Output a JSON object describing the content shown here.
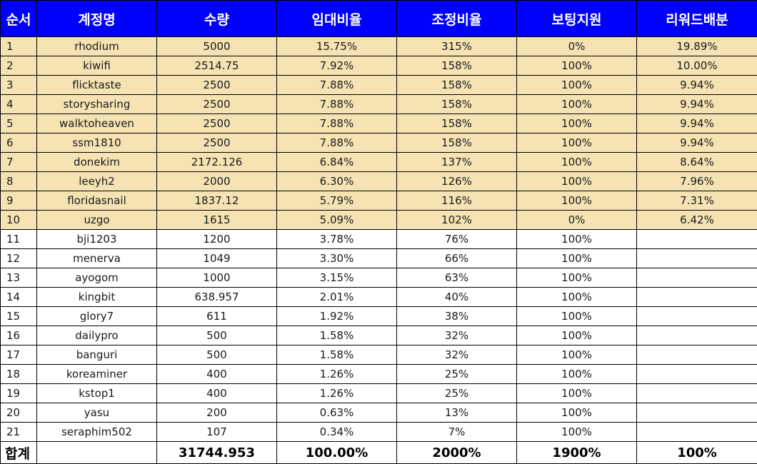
{
  "colors": {
    "header_bg": "#0000ff",
    "header_text": "#ffffff",
    "highlight_row_bg": "#f5e3b3",
    "border": "#000000"
  },
  "headers": [
    "순서",
    "계정명",
    "수량",
    "임대비율",
    "조정비율",
    "보팅지원",
    "리워드배분"
  ],
  "rows": [
    [
      "1",
      "rhodium",
      "5000",
      "15.75%",
      "315%",
      "0%",
      "19.89%"
    ],
    [
      "2",
      "kiwifi",
      "2514.75",
      "7.92%",
      "158%",
      "100%",
      "10.00%"
    ],
    [
      "3",
      "flicktaste",
      "2500",
      "7.88%",
      "158%",
      "100%",
      "9.94%"
    ],
    [
      "4",
      "storysharing",
      "2500",
      "7.88%",
      "158%",
      "100%",
      "9.94%"
    ],
    [
      "5",
      "walktoheaven",
      "2500",
      "7.88%",
      "158%",
      "100%",
      "9.94%"
    ],
    [
      "6",
      "ssm1810",
      "2500",
      "7.88%",
      "158%",
      "100%",
      "9.94%"
    ],
    [
      "7",
      "donekim",
      "2172.126",
      "6.84%",
      "137%",
      "100%",
      "8.64%"
    ],
    [
      "8",
      "leeyh2",
      "2000",
      "6.30%",
      "126%",
      "100%",
      "7.96%"
    ],
    [
      "9",
      "floridasnail",
      "1837.12",
      "5.79%",
      "116%",
      "100%",
      "7.31%"
    ],
    [
      "10",
      "uzgo",
      "1615",
      "5.09%",
      "102%",
      "0%",
      "6.42%"
    ],
    [
      "11",
      "bji1203",
      "1200",
      "3.78%",
      "76%",
      "100%",
      ""
    ],
    [
      "12",
      "menerva",
      "1049",
      "3.30%",
      "66%",
      "100%",
      ""
    ],
    [
      "13",
      "ayogom",
      "1000",
      "3.15%",
      "63%",
      "100%",
      ""
    ],
    [
      "14",
      "kingbit",
      "638.957",
      "2.01%",
      "40%",
      "100%",
      ""
    ],
    [
      "15",
      "glory7",
      "611",
      "1.92%",
      "38%",
      "100%",
      ""
    ],
    [
      "16",
      "dailypro",
      "500",
      "1.58%",
      "32%",
      "100%",
      ""
    ],
    [
      "17",
      "banguri",
      "500",
      "1.58%",
      "32%",
      "100%",
      ""
    ],
    [
      "18",
      "koreaminer",
      "400",
      "1.26%",
      "25%",
      "100%",
      ""
    ],
    [
      "19",
      "kstop1",
      "400",
      "1.26%",
      "25%",
      "100%",
      ""
    ],
    [
      "20",
      "yasu",
      "200",
      "0.63%",
      "13%",
      "100%",
      ""
    ],
    [
      "21",
      "seraphim502",
      "107",
      "0.34%",
      "7%",
      "100%",
      ""
    ]
  ],
  "totals": [
    "합계",
    "",
    "31744.953",
    "100.00%",
    "2000%",
    "1900%",
    "100%"
  ]
}
